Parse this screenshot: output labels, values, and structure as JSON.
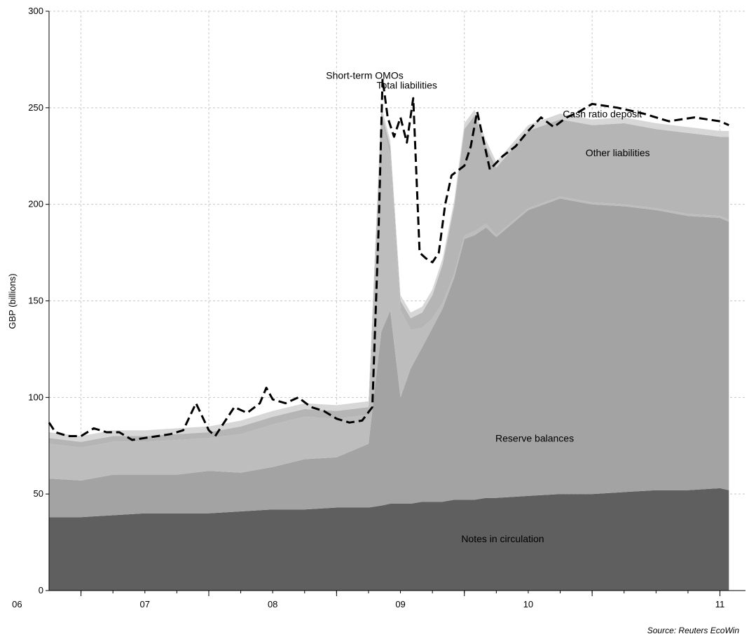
{
  "chart_data": {
    "type": "area",
    "title": "",
    "xlabel": "",
    "ylabel": "GBP (billions)",
    "ylim": [
      0,
      300
    ],
    "xlim": [
      2005.75,
      2011.2
    ],
    "yticks": [
      0,
      50,
      100,
      150,
      200,
      250,
      300
    ],
    "xticks": [
      {
        "label": "06",
        "at": 2006.0
      },
      {
        "label": "07",
        "at": 2007.0
      },
      {
        "label": "08",
        "at": 2008.0
      },
      {
        "label": "09",
        "at": 2009.0
      },
      {
        "label": "10",
        "at": 2010.0
      },
      {
        "label": "11",
        "at": 2011.0
      }
    ],
    "grid": true,
    "x": [
      2005.75,
      2006.0,
      2006.25,
      2006.5,
      2006.75,
      2007.0,
      2007.25,
      2007.5,
      2007.75,
      2008.0,
      2008.25,
      2008.35,
      2008.42,
      2008.5,
      2008.58,
      2008.67,
      2008.75,
      2008.83,
      2008.92,
      2009.0,
      2009.08,
      2009.17,
      2009.25,
      2009.5,
      2009.75,
      2010.0,
      2010.25,
      2010.5,
      2010.75,
      2011.0,
      2011.07
    ],
    "series": [
      {
        "name": "Notes in circulation",
        "color": "#5f5f5f",
        "values": [
          38,
          38,
          39,
          40,
          40,
          40,
          41,
          42,
          42,
          43,
          43,
          44,
          45,
          45,
          45,
          46,
          46,
          46,
          47,
          47,
          47,
          48,
          48,
          49,
          50,
          50,
          51,
          52,
          52,
          53,
          52
        ]
      },
      {
        "name": "Reserve balances",
        "color": "#a3a3a3",
        "values": [
          20,
          19,
          21,
          20,
          20,
          22,
          20,
          22,
          26,
          26,
          33,
          90,
          100,
          55,
          70,
          80,
          90,
          100,
          115,
          135,
          137,
          140,
          135,
          148,
          153,
          150,
          148,
          145,
          142,
          140,
          139
        ]
      },
      {
        "name": "Short-term OMOs",
        "color": "#bdbdbd",
        "values": [
          18,
          17,
          17,
          17,
          18,
          17,
          20,
          22,
          22,
          20,
          15,
          110,
          80,
          45,
          20,
          10,
          5,
          3,
          2,
          2,
          2,
          2,
          1,
          1,
          1,
          1,
          1,
          1,
          1,
          1,
          1
        ]
      },
      {
        "name": "Other liabilities",
        "color": "#b5b5b5",
        "values": [
          3,
          3,
          3,
          3,
          3,
          3,
          4,
          4,
          4,
          4,
          4,
          4,
          5,
          5,
          6,
          8,
          12,
          20,
          35,
          55,
          60,
          40,
          35,
          40,
          40,
          40,
          42,
          41,
          42,
          41,
          43
        ]
      },
      {
        "name": "Cash ratio deposit",
        "color": "#d7d7d7",
        "values": [
          3,
          3,
          3,
          3,
          3,
          3,
          3,
          3,
          3,
          3,
          3,
          3,
          3,
          3,
          3,
          3,
          3,
          3,
          3,
          3,
          3,
          3,
          3,
          3,
          3,
          3,
          3,
          3,
          3,
          3,
          3
        ]
      }
    ],
    "total_liabilities": {
      "name": "Total liabilities",
      "style": "dashed",
      "x": [
        2005.75,
        2005.8,
        2005.9,
        2006.0,
        2006.1,
        2006.2,
        2006.3,
        2006.4,
        2006.5,
        2006.6,
        2006.7,
        2006.8,
        2006.9,
        2007.0,
        2007.05,
        2007.1,
        2007.2,
        2007.3,
        2007.4,
        2007.45,
        2007.5,
        2007.6,
        2007.7,
        2007.8,
        2007.9,
        2008.0,
        2008.1,
        2008.2,
        2008.28,
        2008.33,
        2008.36,
        2008.4,
        2008.45,
        2008.5,
        2008.55,
        2008.6,
        2008.65,
        2008.7,
        2008.75,
        2008.8,
        2008.85,
        2008.9,
        2009.0,
        2009.05,
        2009.1,
        2009.2,
        2009.3,
        2009.4,
        2009.5,
        2009.6,
        2009.7,
        2009.8,
        2009.9,
        2010.0,
        2010.2,
        2010.4,
        2010.6,
        2010.8,
        2011.0,
        2011.07
      ],
      "values": [
        87,
        82,
        80,
        80,
        84,
        82,
        82,
        78,
        79,
        80,
        81,
        83,
        97,
        83,
        80,
        85,
        95,
        92,
        97,
        105,
        99,
        97,
        100,
        95,
        93,
        89,
        87,
        88,
        95,
        190,
        265,
        245,
        235,
        245,
        232,
        255,
        175,
        172,
        170,
        175,
        200,
        215,
        220,
        230,
        248,
        218,
        225,
        230,
        238,
        245,
        240,
        245,
        248,
        252,
        250,
        247,
        243,
        245,
        243,
        241
      ]
    },
    "annotations": [
      {
        "text": "Short-term OMOs",
        "x": 2008.22,
        "y": 265
      },
      {
        "text": "Total liabilities",
        "x": 2008.55,
        "y": 260
      },
      {
        "text": "Cash ratio deposit",
        "x": 2010.08,
        "y": 245
      },
      {
        "text": "Other liabilities",
        "x": 2010.2,
        "y": 225
      },
      {
        "text": "Reserve balances",
        "x": 2009.55,
        "y": 77
      },
      {
        "text": "Notes in circulation",
        "x": 2009.3,
        "y": 25
      }
    ],
    "source": "Source: Reuters EcoWin"
  }
}
